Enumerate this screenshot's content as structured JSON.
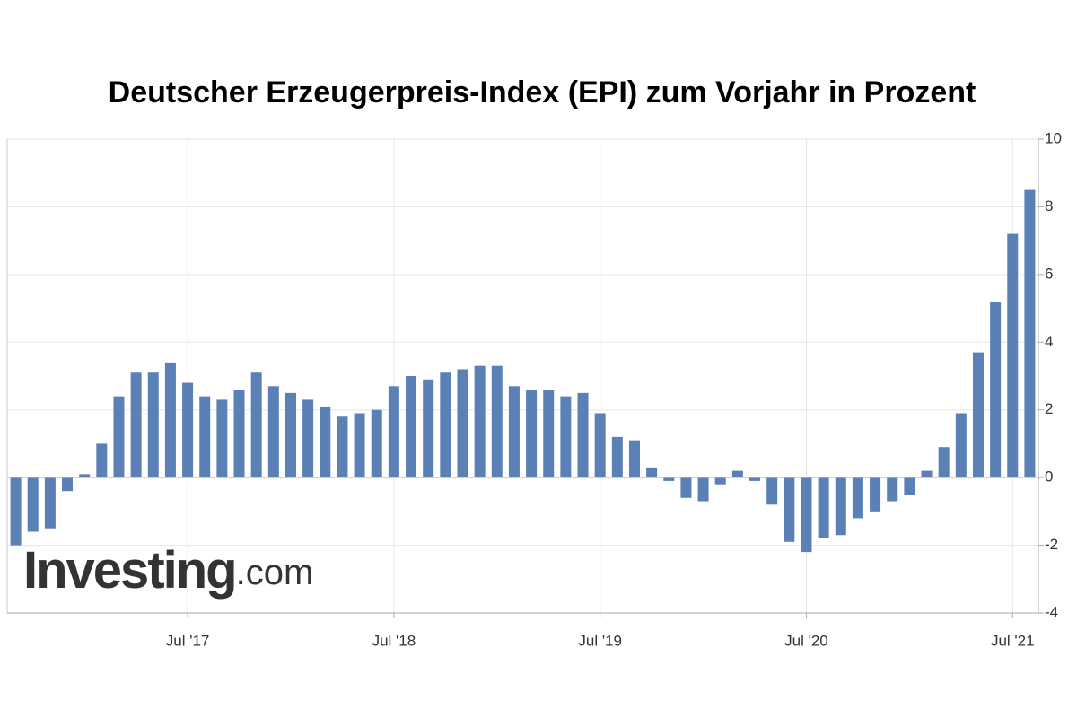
{
  "chart_data": {
    "type": "bar",
    "title": "Deutscher Erzeugerpreis-Index (EPI) zum Vorjahr in Prozent",
    "watermark": [
      "Investing",
      ".com"
    ],
    "categories": [
      null,
      null,
      null,
      null,
      null,
      null,
      null,
      null,
      null,
      null,
      "Jul '17",
      null,
      null,
      null,
      null,
      null,
      null,
      null,
      null,
      null,
      null,
      null,
      "Jul '18",
      null,
      null,
      null,
      null,
      null,
      null,
      null,
      null,
      null,
      null,
      null,
      "Jul '19",
      null,
      null,
      null,
      null,
      null,
      null,
      null,
      null,
      null,
      null,
      null,
      "Jul '20",
      null,
      null,
      null,
      null,
      null,
      null,
      null,
      null,
      null,
      null,
      null,
      "Jul '21",
      null
    ],
    "values": [
      -2.0,
      -1.6,
      -1.5,
      -0.4,
      0.1,
      1.0,
      2.4,
      3.1,
      3.1,
      3.4,
      2.8,
      2.4,
      2.3,
      2.6,
      3.1,
      2.7,
      2.5,
      2.3,
      2.1,
      1.8,
      1.9,
      2.0,
      2.7,
      3.0,
      2.9,
      3.1,
      3.2,
      3.3,
      3.3,
      2.7,
      2.6,
      2.6,
      2.4,
      2.5,
      1.9,
      1.2,
      1.1,
      0.3,
      -0.1,
      -0.6,
      -0.7,
      -0.2,
      0.2,
      -0.1,
      -0.8,
      -1.9,
      -2.2,
      -1.8,
      -1.7,
      -1.2,
      -1.0,
      -0.7,
      -0.5,
      0.2,
      0.9,
      1.9,
      3.7,
      5.2,
      7.2,
      8.5
    ],
    "color": "#5b80b6",
    "ylim": [
      -4,
      10
    ],
    "yticks": [
      -4,
      -2,
      0,
      2,
      4,
      6,
      8,
      10
    ],
    "grid": true
  }
}
